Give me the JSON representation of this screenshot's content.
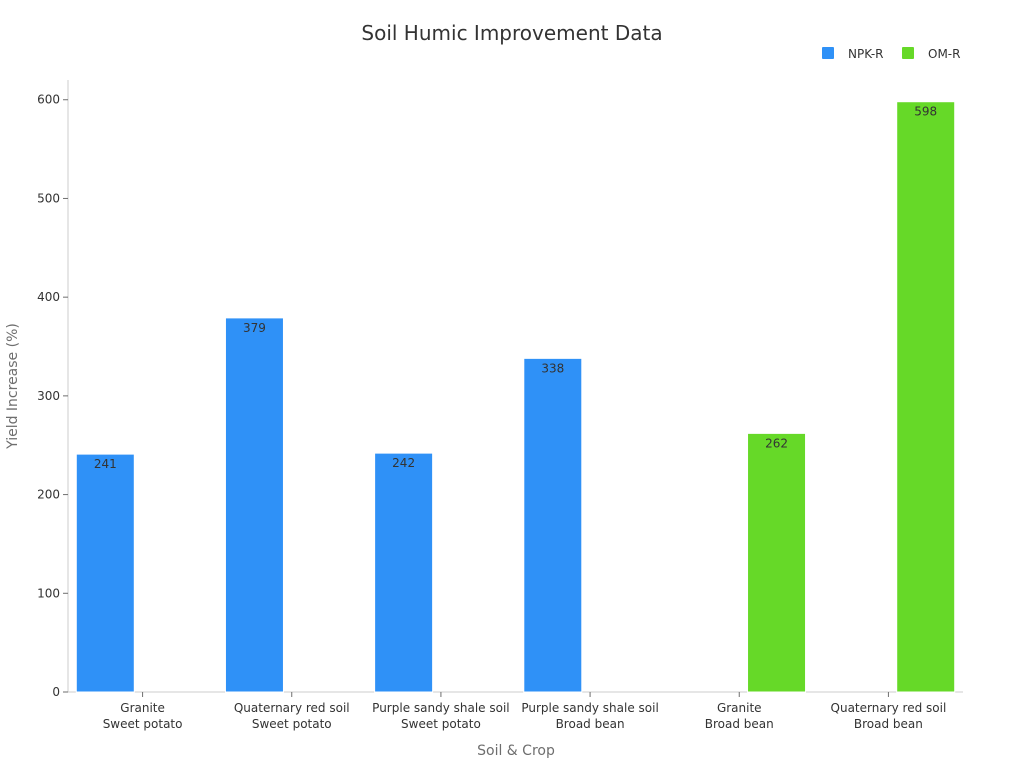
{
  "chart_data": {
    "type": "bar",
    "title": "Soil Humic Improvement Data",
    "xlabel": "Soil & Crop",
    "ylabel": "Yield Increase (%)",
    "ylim": [
      0,
      620
    ],
    "yticks": [
      0,
      100,
      200,
      300,
      400,
      500,
      600
    ],
    "categories": [
      [
        "Granite",
        "Sweet potato"
      ],
      [
        "Quaternary red soil",
        "Sweet potato"
      ],
      [
        "Purple sandy shale soil",
        "Sweet potato"
      ],
      [
        "Purple sandy shale soil",
        "Broad bean"
      ],
      [
        "Granite",
        "Broad bean"
      ],
      [
        "Quaternary red soil",
        "Broad bean"
      ]
    ],
    "series": [
      {
        "name": "NPK-R",
        "color": "#2f91f7",
        "values": [
          241,
          379,
          242,
          338,
          null,
          null
        ]
      },
      {
        "name": "OM-R",
        "color": "#66d928",
        "values": [
          null,
          null,
          null,
          null,
          262,
          598
        ]
      }
    ],
    "grid": false,
    "legend_position": "top-right"
  }
}
